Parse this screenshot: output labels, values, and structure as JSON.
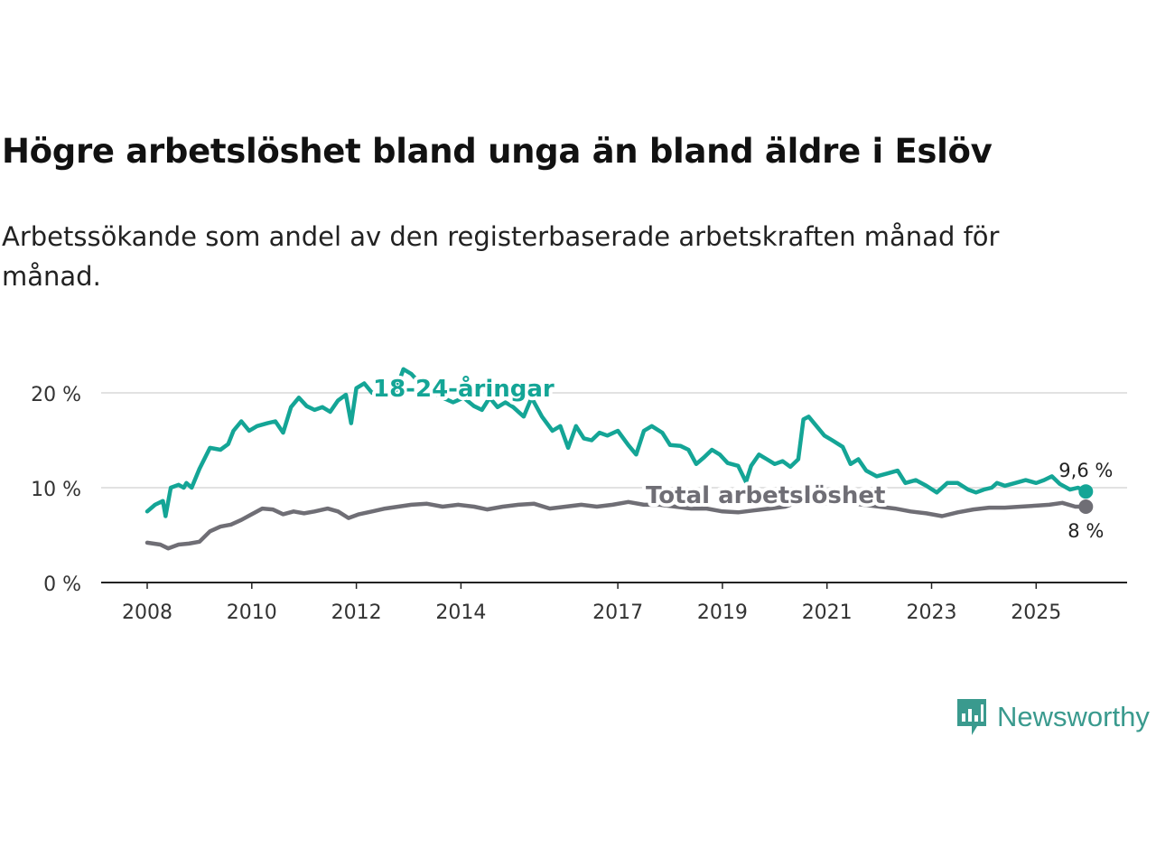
{
  "title": "Högre arbetslöshet bland unga än bland äldre i Eslöv",
  "subtitle": "Arbetssökande som andel av den registerbaserade arbetskraften månad för månad.",
  "brand": {
    "name": "Newsworthy",
    "color": "#3a9a8e"
  },
  "chart_data": {
    "type": "line",
    "title": "Högre arbetslöshet bland unga än bland äldre i Eslöv",
    "xlabel": "",
    "ylabel": "",
    "ylim": [
      0,
      25
    ],
    "xlim": [
      2008,
      2026.1
    ],
    "y_ticks": [
      0,
      10,
      20
    ],
    "y_tick_labels": [
      "0 %",
      "10 %",
      "20 %"
    ],
    "x_ticks": [
      2008,
      2010,
      2012,
      2014,
      2017,
      2019,
      2021,
      2023,
      2025
    ],
    "x_tick_labels": [
      "2008",
      "2010",
      "2012",
      "2014",
      "2017",
      "2019",
      "2021",
      "2023",
      "2025"
    ],
    "grid": true,
    "series": [
      {
        "name": "18-24-åringar",
        "color": "#14a596",
        "end_label": "9,6 %",
        "points": [
          [
            2008.0,
            7.5
          ],
          [
            2008.15,
            8.2
          ],
          [
            2008.3,
            8.6
          ],
          [
            2008.35,
            7.0
          ],
          [
            2008.45,
            10.0
          ],
          [
            2008.6,
            10.3
          ],
          [
            2008.7,
            10.0
          ],
          [
            2008.75,
            10.5
          ],
          [
            2008.85,
            10.0
          ],
          [
            2009.0,
            12.0
          ],
          [
            2009.2,
            14.2
          ],
          [
            2009.4,
            14.0
          ],
          [
            2009.55,
            14.6
          ],
          [
            2009.65,
            16.0
          ],
          [
            2009.8,
            17.0
          ],
          [
            2009.95,
            16.0
          ],
          [
            2010.1,
            16.5
          ],
          [
            2010.3,
            16.8
          ],
          [
            2010.45,
            17.0
          ],
          [
            2010.6,
            15.8
          ],
          [
            2010.75,
            18.5
          ],
          [
            2010.9,
            19.5
          ],
          [
            2011.05,
            18.6
          ],
          [
            2011.2,
            18.2
          ],
          [
            2011.35,
            18.5
          ],
          [
            2011.5,
            18.0
          ],
          [
            2011.65,
            19.2
          ],
          [
            2011.8,
            19.8
          ],
          [
            2011.9,
            16.8
          ],
          [
            2012.0,
            20.5
          ],
          [
            2012.15,
            21.0
          ],
          [
            2012.3,
            20.0
          ],
          [
            2012.45,
            20.1
          ],
          [
            2012.6,
            20.0
          ],
          [
            2012.75,
            20.2
          ],
          [
            2012.9,
            22.5
          ],
          [
            2013.05,
            22.0
          ],
          [
            2013.25,
            20.8
          ],
          [
            2013.45,
            20.0
          ],
          [
            2013.65,
            19.5
          ],
          [
            2013.85,
            19.0
          ],
          [
            2014.05,
            19.5
          ],
          [
            2014.25,
            18.6
          ],
          [
            2014.4,
            18.2
          ],
          [
            2014.55,
            19.5
          ],
          [
            2014.7,
            18.5
          ],
          [
            2014.85,
            19.0
          ],
          [
            2015.0,
            18.5
          ],
          [
            2015.2,
            17.5
          ],
          [
            2015.35,
            19.5
          ],
          [
            2015.55,
            17.5
          ],
          [
            2015.75,
            16.0
          ],
          [
            2015.9,
            16.5
          ],
          [
            2016.05,
            14.2
          ],
          [
            2016.2,
            16.5
          ],
          [
            2016.35,
            15.2
          ],
          [
            2016.5,
            15.0
          ],
          [
            2016.65,
            15.8
          ],
          [
            2016.8,
            15.5
          ],
          [
            2017.0,
            16.0
          ],
          [
            2017.2,
            14.5
          ],
          [
            2017.35,
            13.5
          ],
          [
            2017.5,
            16.0
          ],
          [
            2017.65,
            16.5
          ],
          [
            2017.85,
            15.8
          ],
          [
            2018.0,
            14.5
          ],
          [
            2018.2,
            14.4
          ],
          [
            2018.35,
            14.0
          ],
          [
            2018.5,
            12.5
          ],
          [
            2018.65,
            13.2
          ],
          [
            2018.8,
            14.0
          ],
          [
            2018.95,
            13.5
          ],
          [
            2019.1,
            12.6
          ],
          [
            2019.3,
            12.3
          ],
          [
            2019.45,
            10.6
          ],
          [
            2019.55,
            12.3
          ],
          [
            2019.7,
            13.5
          ],
          [
            2019.85,
            13.0
          ],
          [
            2020.0,
            12.5
          ],
          [
            2020.15,
            12.8
          ],
          [
            2020.3,
            12.2
          ],
          [
            2020.45,
            13.0
          ],
          [
            2020.55,
            17.2
          ],
          [
            2020.65,
            17.5
          ],
          [
            2020.8,
            16.5
          ],
          [
            2020.95,
            15.5
          ],
          [
            2021.1,
            15.0
          ],
          [
            2021.3,
            14.3
          ],
          [
            2021.45,
            12.5
          ],
          [
            2021.6,
            13.0
          ],
          [
            2021.75,
            11.8
          ],
          [
            2021.95,
            11.2
          ],
          [
            2022.15,
            11.5
          ],
          [
            2022.35,
            11.8
          ],
          [
            2022.5,
            10.5
          ],
          [
            2022.7,
            10.8
          ],
          [
            2022.9,
            10.2
          ],
          [
            2023.1,
            9.5
          ],
          [
            2023.3,
            10.5
          ],
          [
            2023.5,
            10.5
          ],
          [
            2023.7,
            9.8
          ],
          [
            2023.85,
            9.5
          ],
          [
            2024.0,
            9.8
          ],
          [
            2024.15,
            10.0
          ],
          [
            2024.25,
            10.5
          ],
          [
            2024.4,
            10.2
          ],
          [
            2024.6,
            10.5
          ],
          [
            2024.8,
            10.8
          ],
          [
            2025.0,
            10.5
          ],
          [
            2025.15,
            10.8
          ],
          [
            2025.3,
            11.2
          ],
          [
            2025.45,
            10.4
          ],
          [
            2025.65,
            9.8
          ],
          [
            2025.8,
            10.0
          ],
          [
            2025.95,
            9.6
          ]
        ]
      },
      {
        "name": "Total arbetslöshet",
        "color": "#6f6e75",
        "end_label": "8 %",
        "points": [
          [
            2008.0,
            4.2
          ],
          [
            2008.25,
            4.0
          ],
          [
            2008.4,
            3.6
          ],
          [
            2008.6,
            4.0
          ],
          [
            2008.8,
            4.1
          ],
          [
            2009.0,
            4.3
          ],
          [
            2009.2,
            5.4
          ],
          [
            2009.4,
            5.9
          ],
          [
            2009.6,
            6.1
          ],
          [
            2009.8,
            6.6
          ],
          [
            2010.0,
            7.2
          ],
          [
            2010.2,
            7.8
          ],
          [
            2010.4,
            7.7
          ],
          [
            2010.6,
            7.2
          ],
          [
            2010.8,
            7.5
          ],
          [
            2011.0,
            7.3
          ],
          [
            2011.2,
            7.5
          ],
          [
            2011.45,
            7.8
          ],
          [
            2011.65,
            7.5
          ],
          [
            2011.85,
            6.8
          ],
          [
            2012.05,
            7.2
          ],
          [
            2012.3,
            7.5
          ],
          [
            2012.55,
            7.8
          ],
          [
            2012.8,
            8.0
          ],
          [
            2013.05,
            8.2
          ],
          [
            2013.35,
            8.3
          ],
          [
            2013.65,
            8.0
          ],
          [
            2013.95,
            8.2
          ],
          [
            2014.25,
            8.0
          ],
          [
            2014.5,
            7.7
          ],
          [
            2014.8,
            8.0
          ],
          [
            2015.1,
            8.2
          ],
          [
            2015.4,
            8.3
          ],
          [
            2015.7,
            7.8
          ],
          [
            2016.0,
            8.0
          ],
          [
            2016.3,
            8.2
          ],
          [
            2016.6,
            8.0
          ],
          [
            2016.9,
            8.2
          ],
          [
            2017.2,
            8.5
          ],
          [
            2017.5,
            8.2
          ],
          [
            2017.8,
            8.2
          ],
          [
            2018.1,
            8.0
          ],
          [
            2018.4,
            7.8
          ],
          [
            2018.7,
            7.8
          ],
          [
            2019.0,
            7.5
          ],
          [
            2019.3,
            7.4
          ],
          [
            2019.6,
            7.6
          ],
          [
            2019.9,
            7.8
          ],
          [
            2020.2,
            8.0
          ],
          [
            2020.5,
            8.6
          ],
          [
            2020.8,
            8.5
          ],
          [
            2021.1,
            8.3
          ],
          [
            2021.4,
            8.4
          ],
          [
            2021.7,
            8.2
          ],
          [
            2022.0,
            8.0
          ],
          [
            2022.3,
            7.8
          ],
          [
            2022.6,
            7.5
          ],
          [
            2022.9,
            7.3
          ],
          [
            2023.2,
            7.0
          ],
          [
            2023.5,
            7.4
          ],
          [
            2023.8,
            7.7
          ],
          [
            2024.1,
            7.9
          ],
          [
            2024.4,
            7.9
          ],
          [
            2024.7,
            8.0
          ],
          [
            2025.0,
            8.1
          ],
          [
            2025.25,
            8.2
          ],
          [
            2025.5,
            8.4
          ],
          [
            2025.75,
            8.0
          ],
          [
            2025.95,
            8.0
          ]
        ]
      }
    ]
  }
}
